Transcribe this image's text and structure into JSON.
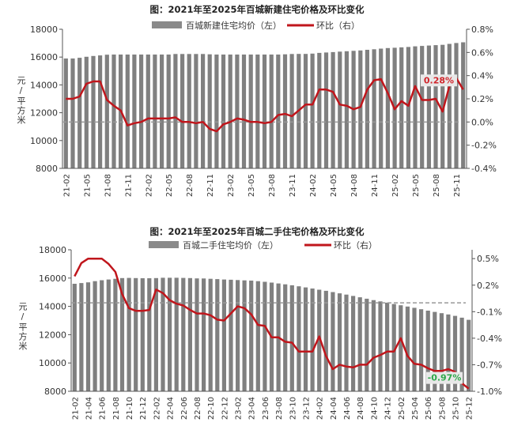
{
  "chart_data": [
    {
      "type": "bar+line",
      "title": "图：2021年至2025年百城新建住宅价格及环比变化",
      "ylabel": "元/平方米",
      "ylim": [
        8000,
        18000
      ],
      "yticks": [
        "8000",
        "10000",
        "12000",
        "14000",
        "16000",
        "18000"
      ],
      "y2lim": [
        -0.4,
        0.8
      ],
      "y2ticks": [
        "-0.4%",
        "-0.2%",
        "0.0%",
        "0.2%",
        "0.4%",
        "0.6%",
        "0.8%"
      ],
      "reference_line_y2": 0.0,
      "xtick_labels": [
        "21-02",
        "21-05",
        "21-08",
        "21-11",
        "22-02",
        "22-05",
        "22-08",
        "22-11",
        "23-02",
        "23-05",
        "23-08",
        "23-11",
        "24-02",
        "24-05",
        "24-08",
        "24-11",
        "25-02",
        "25-05",
        "25-08",
        "25-11"
      ],
      "categories": [
        "21-02",
        "21-03",
        "21-04",
        "21-05",
        "21-06",
        "21-07",
        "21-08",
        "21-09",
        "21-10",
        "21-11",
        "21-12",
        "22-01",
        "22-02",
        "22-03",
        "22-04",
        "22-05",
        "22-06",
        "22-07",
        "22-08",
        "22-09",
        "22-10",
        "22-11",
        "22-12",
        "23-01",
        "23-02",
        "23-03",
        "23-04",
        "23-05",
        "23-06",
        "23-07",
        "23-08",
        "23-09",
        "23-10",
        "23-11",
        "23-12",
        "24-01",
        "24-02",
        "24-03",
        "24-04",
        "24-05",
        "24-06",
        "24-07",
        "24-08",
        "24-09",
        "24-10",
        "24-11",
        "24-12",
        "25-01",
        "25-02",
        "25-03",
        "25-04",
        "25-05",
        "25-06",
        "25-07",
        "25-08",
        "25-09",
        "25-10",
        "25-11",
        "25-12"
      ],
      "series": [
        {
          "name": "百城新建住宅均价（左）",
          "type": "bar",
          "color": "#808080",
          "values": [
            15900,
            15900,
            15950,
            16020,
            16080,
            16120,
            16170,
            16180,
            16180,
            16180,
            16180,
            16180,
            16180,
            16180,
            16180,
            16180,
            16220,
            16220,
            16220,
            16220,
            16220,
            16200,
            16180,
            16180,
            16180,
            16180,
            16180,
            16180,
            16180,
            16180,
            16180,
            16180,
            16200,
            16220,
            16230,
            16230,
            16250,
            16300,
            16330,
            16360,
            16390,
            16420,
            16450,
            16480,
            16520,
            16560,
            16610,
            16650,
            16670,
            16700,
            16730,
            16770,
            16800,
            16830,
            16860,
            16880,
            16950,
            17010,
            17060
          ]
        },
        {
          "name": "环比（右）",
          "type": "line",
          "color": "#c0161c",
          "values": [
            0.2,
            0.2,
            0.22,
            0.33,
            0.35,
            0.35,
            0.19,
            0.14,
            0.1,
            -0.03,
            -0.01,
            0.0,
            0.03,
            0.03,
            0.03,
            0.03,
            0.04,
            0.0,
            0.0,
            -0.01,
            0.0,
            -0.06,
            -0.08,
            -0.02,
            0.0,
            0.03,
            0.02,
            0.0,
            0.0,
            -0.01,
            0.0,
            0.06,
            0.07,
            0.05,
            0.1,
            0.15,
            0.15,
            0.28,
            0.28,
            0.26,
            0.15,
            0.14,
            0.11,
            0.13,
            0.28,
            0.36,
            0.37,
            0.25,
            0.11,
            0.18,
            0.14,
            0.31,
            0.19,
            0.19,
            0.2,
            0.09,
            0.31,
            0.38,
            0.28
          ]
        }
      ],
      "end_label": "0.28%",
      "end_label_color": "#d0252b",
      "legend": "top"
    },
    {
      "type": "bar+line",
      "title": "图：2021年至2025年百城二手住宅价格及环比变化",
      "ylabel": "元/平方米",
      "ylim": [
        8000,
        18000
      ],
      "yticks": [
        "8000",
        "10000",
        "12000",
        "14000",
        "16000",
        "18000"
      ],
      "y2lim": [
        -1.0,
        0.6
      ],
      "y2ticks": [
        "-1.0%",
        "-0.7%",
        "-0.4%",
        "-0.1%",
        "0.2%",
        "0.5%"
      ],
      "reference_line_y2": 0.0,
      "xtick_labels": [
        "21-02",
        "21-04",
        "21-06",
        "21-08",
        "21-10",
        "21-12",
        "22-02",
        "22-04",
        "22-06",
        "22-08",
        "22-10",
        "22-12",
        "23-02",
        "23-04",
        "23-06",
        "23-08",
        "23-10",
        "23-12",
        "24-02",
        "24-04",
        "24-06",
        "24-08",
        "24-10",
        "24-12",
        "25-02",
        "25-04",
        "25-06",
        "25-08",
        "25-10",
        "25-12"
      ],
      "categories": [
        "21-02",
        "21-03",
        "21-04",
        "21-05",
        "21-06",
        "21-07",
        "21-08",
        "21-09",
        "21-10",
        "21-11",
        "21-12",
        "22-01",
        "22-02",
        "22-03",
        "22-04",
        "22-05",
        "22-06",
        "22-07",
        "22-08",
        "22-09",
        "22-10",
        "22-11",
        "22-12",
        "23-01",
        "23-02",
        "23-03",
        "23-04",
        "23-05",
        "23-06",
        "23-07",
        "23-08",
        "23-09",
        "23-10",
        "23-11",
        "23-12",
        "24-01",
        "24-02",
        "24-03",
        "24-04",
        "24-05",
        "24-06",
        "24-07",
        "24-08",
        "24-09",
        "24-10",
        "24-11",
        "24-12",
        "25-01",
        "25-02",
        "25-03",
        "25-04",
        "25-05",
        "25-06",
        "25-07",
        "25-08",
        "25-09",
        "25-10",
        "25-11",
        "25-12"
      ],
      "series": [
        {
          "name": "百城二手住宅均价（左）",
          "type": "bar",
          "color": "#808080",
          "values": [
            15600,
            15650,
            15700,
            15780,
            15850,
            15900,
            15950,
            16000,
            16010,
            16000,
            15990,
            15990,
            16000,
            16020,
            16020,
            16020,
            16010,
            16000,
            15980,
            15970,
            15950,
            15930,
            15900,
            15880,
            15860,
            15840,
            15820,
            15780,
            15740,
            15680,
            15620,
            15560,
            15490,
            15420,
            15340,
            15260,
            15180,
            15100,
            15010,
            14920,
            14830,
            14740,
            14640,
            14540,
            14440,
            14350,
            14260,
            14170,
            14080,
            13990,
            13900,
            13800,
            13700,
            13610,
            13520,
            13430,
            13330,
            13200,
            13050
          ]
        },
        {
          "name": "环比（右）",
          "type": "line",
          "color": "#c0161c",
          "values": [
            0.3,
            0.45,
            0.5,
            0.5,
            0.5,
            0.44,
            0.35,
            0.1,
            -0.06,
            -0.09,
            -0.09,
            -0.08,
            0.15,
            0.11,
            0.03,
            -0.01,
            -0.03,
            -0.08,
            -0.12,
            -0.12,
            -0.14,
            -0.19,
            -0.2,
            -0.12,
            -0.04,
            -0.06,
            -0.13,
            -0.25,
            -0.26,
            -0.39,
            -0.39,
            -0.44,
            -0.45,
            -0.55,
            -0.55,
            -0.55,
            -0.38,
            -0.6,
            -0.75,
            -0.7,
            -0.72,
            -0.73,
            -0.7,
            -0.7,
            -0.62,
            -0.59,
            -0.55,
            -0.55,
            -0.4,
            -0.6,
            -0.69,
            -0.7,
            -0.74,
            -0.77,
            -0.77,
            -0.75,
            -0.78,
            -0.91,
            -0.97
          ]
        }
      ],
      "end_label": "-0.97%",
      "end_label_color": "#2ea84a",
      "legend": "top"
    }
  ]
}
